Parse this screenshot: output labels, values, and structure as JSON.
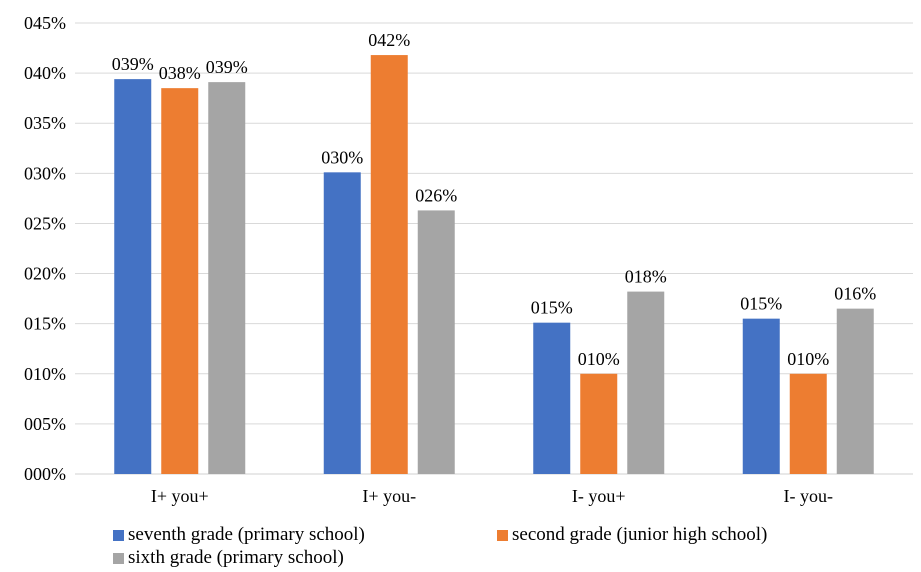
{
  "chart_data": {
    "type": "bar",
    "title": "",
    "xlabel": "",
    "ylabel": "",
    "categories": [
      "I+ you+",
      "I+ you-",
      "I- you+",
      "I- you-"
    ],
    "y_ticks": [
      "000%",
      "005%",
      "010%",
      "015%",
      "020%",
      "025%",
      "030%",
      "035%",
      "040%",
      "045%"
    ],
    "ylim": [
      0,
      0.45
    ],
    "grid": true,
    "legend_position": "bottom",
    "series": [
      {
        "name": "seventh grade (primary school)",
        "color": "#4472C4",
        "values": [
          0.394,
          0.301,
          0.151,
          0.155
        ],
        "labels": [
          "039%",
          "030%",
          "015%",
          "015%"
        ]
      },
      {
        "name": "second grade (junior high school)",
        "color": "#ED7D31",
        "values": [
          0.385,
          0.418,
          0.1,
          0.1
        ],
        "labels": [
          "038%",
          "042%",
          "010%",
          "010%"
        ]
      },
      {
        "name": "sixth grade (primary school)",
        "color": "#A5A5A5",
        "values": [
          0.391,
          0.263,
          0.182,
          0.165
        ],
        "labels": [
          "039%",
          "026%",
          "018%",
          "016%"
        ]
      }
    ]
  }
}
